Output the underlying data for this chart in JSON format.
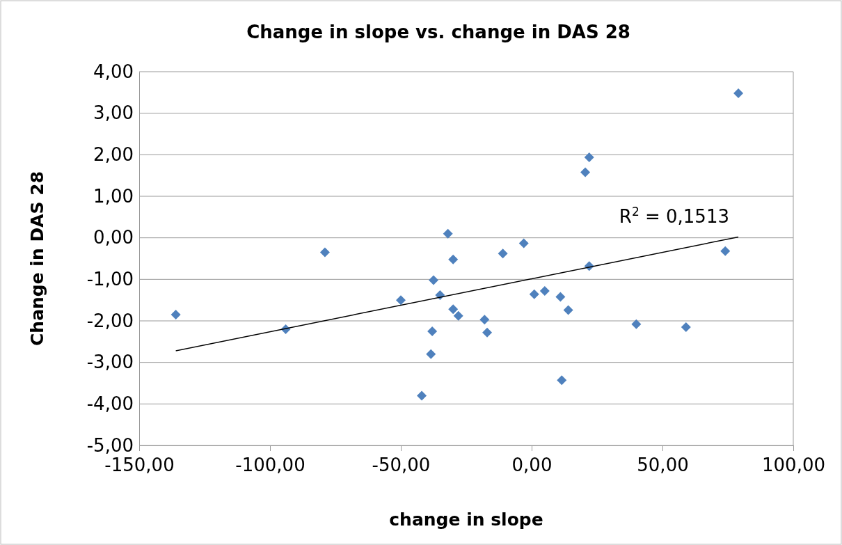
{
  "chart_data": {
    "type": "scatter",
    "title": "Change in slope vs. change in DAS 28",
    "xlabel": "change in slope",
    "ylabel": "Change in DAS 28",
    "xlim": [
      -150,
      100
    ],
    "xticks": [
      {
        "value": -150,
        "label": "-150,00"
      },
      {
        "value": -100,
        "label": "-100,00"
      },
      {
        "value": -50,
        "label": "-50,00"
      },
      {
        "value": 0,
        "label": "0,00"
      },
      {
        "value": 50,
        "label": "50,00"
      },
      {
        "value": 100,
        "label": "100,00"
      }
    ],
    "ylim": [
      -5,
      4
    ],
    "yticks": [
      {
        "value": -5,
        "label": "-5,00"
      },
      {
        "value": -4,
        "label": "-4,00"
      },
      {
        "value": -3,
        "label": "-3,00"
      },
      {
        "value": -2,
        "label": "-2,00"
      },
      {
        "value": -1,
        "label": "-1,00"
      },
      {
        "value": 0,
        "label": "0,00"
      },
      {
        "value": 1,
        "label": "1,00"
      },
      {
        "value": 2,
        "label": "2,00"
      },
      {
        "value": 3,
        "label": "3,00"
      },
      {
        "value": 4,
        "label": "4,00"
      }
    ],
    "grid": "y",
    "annotations": [
      "R$^{2}$ = 0,1513"
    ],
    "series": [
      {
        "marker": "diamond",
        "color": "#4f81bd",
        "x": [
          -136,
          -94,
          -79,
          -50,
          -42,
          -38.5,
          -38,
          -37.5,
          -35,
          -32,
          -30,
          -30,
          -28,
          -18,
          -17,
          -11,
          -3,
          1,
          5,
          11,
          11.5,
          14,
          20.5,
          22,
          22,
          40,
          59,
          74,
          79
        ],
        "values": [
          -1.85,
          -2.2,
          -0.35,
          -1.5,
          -3.8,
          -2.8,
          -2.25,
          -1.02,
          -1.38,
          0.1,
          -0.52,
          -1.72,
          -1.88,
          -1.97,
          -2.28,
          -0.38,
          -0.13,
          -1.36,
          -1.28,
          -1.42,
          -3.43,
          -1.74,
          1.58,
          1.94,
          -0.68,
          -2.08,
          -2.15,
          -0.32,
          3.48
        ]
      },
      {
        "type": "line",
        "color": "#000000",
        "x": [
          -136,
          79
        ],
        "values": [
          -2.72,
          0.02
        ]
      }
    ]
  }
}
